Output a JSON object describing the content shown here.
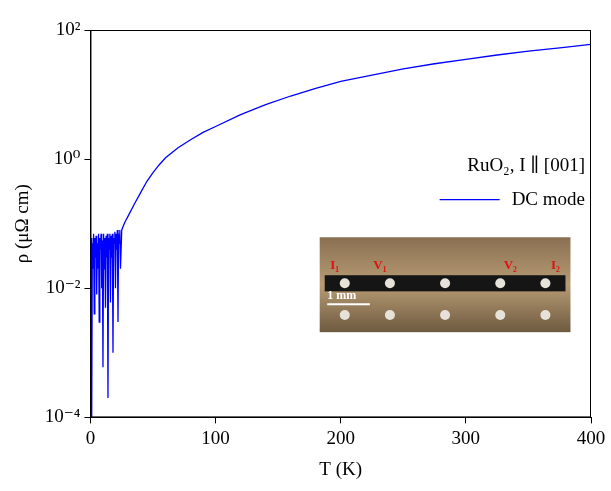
{
  "chart_data": {
    "type": "line",
    "x_label": "T (K)",
    "y_label": "ρ (μΩ cm)",
    "annotations": [
      "RuO₂, I ∥ [001]"
    ],
    "inset_labels": [
      "I₁",
      "V₁",
      "V₂",
      "I₂"
    ],
    "inset_scale": "1 mm",
    "x": [
      0.5,
      1,
      1.5,
      2,
      2.5,
      3,
      3.5,
      4,
      4.5,
      5,
      5.5,
      6,
      6.5,
      7,
      7.5,
      8,
      8.5,
      9,
      9.5,
      10,
      10.5,
      11,
      11.5,
      12,
      12.5,
      13,
      13.5,
      14,
      14.5,
      15,
      15.5,
      16,
      16.5,
      17,
      17.5,
      18,
      18.5,
      19,
      19.5,
      20,
      20.5,
      21,
      21.5,
      22,
      22.5,
      23,
      23.5,
      24,
      25,
      26,
      27,
      28,
      30,
      35,
      40,
      45,
      50,
      55,
      60,
      70,
      80,
      90,
      100,
      120,
      140,
      160,
      180,
      200,
      225,
      250,
      275,
      300,
      325,
      350,
      375,
      400
    ],
    "series": [
      {
        "name": "DC mode",
        "color": "#0000ff",
        "line_style": "solid",
        "values": [
          0.06,
          0.0001,
          0.05,
          0.02,
          0.07,
          0.004,
          0.06,
          0.03,
          0.065,
          0.008,
          0.05,
          0.02,
          0.07,
          0.003,
          0.06,
          0.04,
          0.07,
          0.01,
          0.055,
          0.0006,
          0.07,
          0.02,
          0.06,
          0.005,
          0.065,
          0.03,
          0.07,
          0.0002,
          0.06,
          0.04,
          0.07,
          0.006,
          0.065,
          0.03,
          0.07,
          0.001,
          0.06,
          0.05,
          0.075,
          0.01,
          0.07,
          0.04,
          0.08,
          0.003,
          0.07,
          0.05,
          0.08,
          0.02,
          0.08,
          0.09,
          0.1,
          0.11,
          0.13,
          0.2,
          0.3,
          0.45,
          0.62,
          0.82,
          1.05,
          1.5,
          2.0,
          2.6,
          3.2,
          4.9,
          7.0,
          9.5,
          12.5,
          16,
          20,
          25,
          30,
          35,
          41,
          47,
          53,
          60
        ]
      }
    ],
    "xlim": [
      0,
      400
    ],
    "xticks": [
      0,
      100,
      200,
      300,
      400
    ],
    "ylim": [
      0.0001,
      100
    ],
    "yticks": [
      {
        "value": 0.0001,
        "label": "10⁻⁴"
      },
      {
        "value": 0.01,
        "label": "10⁻²"
      },
      {
        "value": 1,
        "label": "10⁰"
      },
      {
        "value": 100,
        "label": "10²"
      }
    ],
    "log": "y",
    "grid": false,
    "legend": "right"
  }
}
